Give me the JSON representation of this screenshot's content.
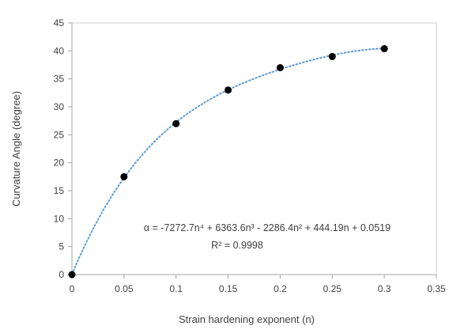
{
  "chart_data": {
    "type": "scatter",
    "xlabel": "Strain hardening exponent (n)",
    "ylabel": "Curvature Angle (degree)",
    "xlim": [
      0,
      0.35
    ],
    "ylim": [
      0,
      45
    ],
    "x_ticks": [
      "0",
      "0.05",
      "0.1",
      "0.15",
      "0.2",
      "0.25",
      "0.3",
      "0.35"
    ],
    "y_ticks": [
      "0",
      "5",
      "10",
      "15",
      "20",
      "25",
      "30",
      "35",
      "40",
      "45"
    ],
    "grid": false,
    "series": [
      {
        "x": [
          0,
          0.05,
          0.1,
          0.15,
          0.2,
          0.25,
          0.3
        ],
        "y": [
          0,
          17.5,
          27,
          33,
          37,
          39,
          40.4
        ],
        "marker_color": "#000000"
      }
    ],
    "trendline": {
      "type": "polynomial",
      "order": 4,
      "coefficients": [
        -7272.7,
        6363.6,
        -2286.4,
        444.19,
        0.0519
      ],
      "x_range": [
        0,
        0.3
      ],
      "style": "dotted",
      "color": "#5B9BD5"
    },
    "annotations": {
      "equation": "α = -7272.7n⁴ + 6363.6n³ - 2286.4n² + 444.19n + 0.0519",
      "r_squared": "R² = 0.9998"
    }
  }
}
